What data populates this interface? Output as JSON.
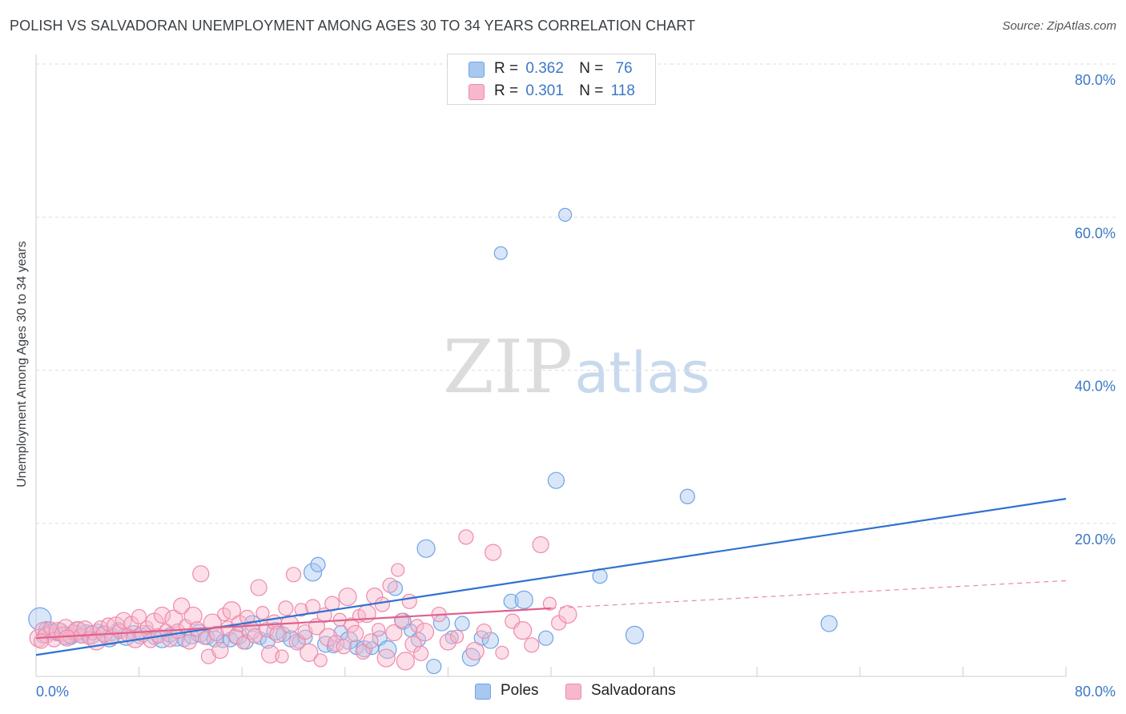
{
  "title": "POLISH VS SALVADORAN UNEMPLOYMENT AMONG AGES 30 TO 34 YEARS CORRELATION CHART",
  "source": "Source: ZipAtlas.com",
  "watermark": {
    "zip": "ZIP",
    "atlas": "atlas"
  },
  "legend": {
    "r_label": "R =",
    "n_label": "N =",
    "rows": [
      {
        "r": "0.362",
        "n": "76",
        "color": "#a8c8f0"
      },
      {
        "r": "0.301",
        "n": "118",
        "color": "#f8b8cc"
      }
    ]
  },
  "chart_data": {
    "type": "scatter",
    "title": "POLISH VS SALVADORAN UNEMPLOYMENT AMONG AGES 30 TO 34 YEARS CORRELATION CHART",
    "ylabel": "Unemployment Among Ages 30 to 34 years",
    "xlabel": "",
    "xlim": [
      0,
      80
    ],
    "ylim": [
      0,
      80
    ],
    "x_tick_labels": [
      "0.0%",
      "80.0%"
    ],
    "y_tick_labels": [
      "20.0%",
      "40.0%",
      "60.0%",
      "80.0%"
    ],
    "y_ticks": [
      20,
      40,
      60,
      80
    ],
    "grid": true,
    "legend_position": "top-center",
    "series": [
      {
        "name": "Poles",
        "color": "#6fa3e6",
        "fill": "#a8c8f0",
        "r": 0.362,
        "n": 76,
        "trend": {
          "x": [
            0,
            80
          ],
          "y": [
            2.8,
            23.2
          ],
          "style": "solid"
        },
        "points": [
          [
            0.3,
            7.5
          ],
          [
            0.8,
            6.2
          ],
          [
            1.2,
            5.8
          ],
          [
            1.6,
            5.5
          ],
          [
            1.9,
            6.0
          ],
          [
            2.3,
            5.3
          ],
          [
            2.7,
            5.1
          ],
          [
            3.1,
            5.6
          ],
          [
            3.5,
            5.2
          ],
          [
            3.9,
            5.8
          ],
          [
            4.3,
            5.4
          ],
          [
            4.8,
            5.9
          ],
          [
            5.3,
            5.6
          ],
          [
            5.9,
            5.5
          ],
          [
            6.4,
            6.1
          ],
          [
            7.0,
            5.2
          ],
          [
            7.6,
            5.7
          ],
          [
            8.1,
            5.3
          ],
          [
            8.7,
            5.8
          ],
          [
            9.2,
            5.1
          ],
          [
            9.8,
            4.9
          ],
          [
            10.4,
            5.4
          ],
          [
            10.9,
            5.0
          ],
          [
            11.5,
            4.7
          ],
          [
            12.1,
            5.2
          ],
          [
            12.7,
            5.6
          ],
          [
            13.3,
            5.1
          ],
          [
            13.9,
            4.9
          ],
          [
            14.5,
            4.6
          ],
          [
            15.1,
            4.8
          ],
          [
            15.7,
            5.3
          ],
          [
            16.3,
            4.5
          ],
          [
            16.8,
            6.9
          ],
          [
            17.4,
            5.0
          ],
          [
            18.0,
            4.6
          ],
          [
            18.6,
            5.9
          ],
          [
            19.2,
            5.5
          ],
          [
            19.8,
            4.9
          ],
          [
            20.4,
            4.5
          ],
          [
            20.9,
            5.1
          ],
          [
            21.5,
            13.6
          ],
          [
            21.9,
            14.6
          ],
          [
            22.5,
            4.2
          ],
          [
            23.1,
            3.9
          ],
          [
            23.7,
            5.7
          ],
          [
            24.3,
            4.7
          ],
          [
            24.9,
            3.8
          ],
          [
            25.5,
            3.6
          ],
          [
            26.1,
            3.7
          ],
          [
            26.7,
            5.0
          ],
          [
            27.3,
            3.5
          ],
          [
            27.9,
            11.5
          ],
          [
            28.5,
            7.2
          ],
          [
            29.1,
            6.0
          ],
          [
            29.7,
            4.8
          ],
          [
            30.3,
            16.7
          ],
          [
            30.9,
            1.3
          ],
          [
            31.5,
            7.0
          ],
          [
            32.3,
            5.1
          ],
          [
            33.1,
            6.9
          ],
          [
            33.8,
            2.5
          ],
          [
            34.6,
            5.0
          ],
          [
            35.3,
            4.7
          ],
          [
            36.1,
            55.3
          ],
          [
            36.9,
            9.8
          ],
          [
            37.9,
            10.0
          ],
          [
            39.6,
            5.0
          ],
          [
            40.4,
            25.6
          ],
          [
            41.1,
            60.3
          ],
          [
            43.8,
            13.1
          ],
          [
            46.5,
            5.4
          ],
          [
            50.6,
            23.5
          ],
          [
            61.6,
            6.9
          ],
          [
            0.5,
            5.2
          ],
          [
            3.3,
            6.2
          ],
          [
            5.7,
            5.0
          ]
        ]
      },
      {
        "name": "Salvadorans",
        "color": "#ee8aaa",
        "fill": "#f8b8cc",
        "r": 0.301,
        "n": 118,
        "trend": {
          "x": [
            0,
            40
          ],
          "y": [
            5.0,
            8.9
          ],
          "style": "solid"
        },
        "trend_extension": {
          "x": [
            40,
            80
          ],
          "y": [
            8.9,
            12.5
          ],
          "style": "dashed"
        },
        "points": [
          [
            0.2,
            5.0
          ],
          [
            0.5,
            6.1
          ],
          [
            0.8,
            5.4
          ],
          [
            1.1,
            6.3
          ],
          [
            1.4,
            4.8
          ],
          [
            1.7,
            5.9
          ],
          [
            2.0,
            5.5
          ],
          [
            2.3,
            6.4
          ],
          [
            2.6,
            5.2
          ],
          [
            2.9,
            5.8
          ],
          [
            3.2,
            6.0
          ],
          [
            3.5,
            5.3
          ],
          [
            3.8,
            6.2
          ],
          [
            4.1,
            5.0
          ],
          [
            4.4,
            5.7
          ],
          [
            4.7,
            4.6
          ],
          [
            5.0,
            6.3
          ],
          [
            5.3,
            5.5
          ],
          [
            5.6,
            6.8
          ],
          [
            5.9,
            5.1
          ],
          [
            6.2,
            6.6
          ],
          [
            6.5,
            5.9
          ],
          [
            6.8,
            7.3
          ],
          [
            7.1,
            5.4
          ],
          [
            7.4,
            6.9
          ],
          [
            7.7,
            4.9
          ],
          [
            8.0,
            7.8
          ],
          [
            8.3,
            5.6
          ],
          [
            8.6,
            6.4
          ],
          [
            8.9,
            4.7
          ],
          [
            9.2,
            7.1
          ],
          [
            9.5,
            5.3
          ],
          [
            9.8,
            8.0
          ],
          [
            10.1,
            6.0
          ],
          [
            10.4,
            4.8
          ],
          [
            10.7,
            7.5
          ],
          [
            11.0,
            5.9
          ],
          [
            11.3,
            9.2
          ],
          [
            11.6,
            6.6
          ],
          [
            11.9,
            4.5
          ],
          [
            12.2,
            7.9
          ],
          [
            12.5,
            6.2
          ],
          [
            12.8,
            13.4
          ],
          [
            13.1,
            5.0
          ],
          [
            13.4,
            2.6
          ],
          [
            13.7,
            7.0
          ],
          [
            14.0,
            5.6
          ],
          [
            14.3,
            3.4
          ],
          [
            14.6,
            8.1
          ],
          [
            14.9,
            6.3
          ],
          [
            15.2,
            8.6
          ],
          [
            15.5,
            5.2
          ],
          [
            15.8,
            6.9
          ],
          [
            16.1,
            4.4
          ],
          [
            16.4,
            7.7
          ],
          [
            16.7,
            6.0
          ],
          [
            17.0,
            5.3
          ],
          [
            17.3,
            11.6
          ],
          [
            17.6,
            8.3
          ],
          [
            17.9,
            6.1
          ],
          [
            18.2,
            2.9
          ],
          [
            18.5,
            7.1
          ],
          [
            18.8,
            5.5
          ],
          [
            19.1,
            2.6
          ],
          [
            19.4,
            8.9
          ],
          [
            19.7,
            6.8
          ],
          [
            20.0,
            13.3
          ],
          [
            20.3,
            4.5
          ],
          [
            20.6,
            8.7
          ],
          [
            20.9,
            5.8
          ],
          [
            21.2,
            3.1
          ],
          [
            21.5,
            9.1
          ],
          [
            21.8,
            6.5
          ],
          [
            22.1,
            2.1
          ],
          [
            22.4,
            8.0
          ],
          [
            22.7,
            5.1
          ],
          [
            23.0,
            9.5
          ],
          [
            23.3,
            4.3
          ],
          [
            23.6,
            7.4
          ],
          [
            23.9,
            3.9
          ],
          [
            24.2,
            10.4
          ],
          [
            24.5,
            6.7
          ],
          [
            24.8,
            5.6
          ],
          [
            25.1,
            7.9
          ],
          [
            25.4,
            3.2
          ],
          [
            25.7,
            8.2
          ],
          [
            26.0,
            4.6
          ],
          [
            26.3,
            10.5
          ],
          [
            26.6,
            6.1
          ],
          [
            26.9,
            9.4
          ],
          [
            27.2,
            2.4
          ],
          [
            27.5,
            11.9
          ],
          [
            27.8,
            5.7
          ],
          [
            28.1,
            13.9
          ],
          [
            28.4,
            7.3
          ],
          [
            28.7,
            2.0
          ],
          [
            29.0,
            9.8
          ],
          [
            29.3,
            4.2
          ],
          [
            29.6,
            6.6
          ],
          [
            29.9,
            3.0
          ],
          [
            30.2,
            5.8
          ],
          [
            31.3,
            8.1
          ],
          [
            32.0,
            4.5
          ],
          [
            32.7,
            5.2
          ],
          [
            33.4,
            18.2
          ],
          [
            34.1,
            3.3
          ],
          [
            34.8,
            5.9
          ],
          [
            35.5,
            16.2
          ],
          [
            36.2,
            3.1
          ],
          [
            37.0,
            7.2
          ],
          [
            37.8,
            6.0
          ],
          [
            38.5,
            4.1
          ],
          [
            39.2,
            17.2
          ],
          [
            39.9,
            9.5
          ],
          [
            40.6,
            7.0
          ],
          [
            41.3,
            8.1
          ],
          [
            0.4,
            4.6
          ],
          [
            2.4,
            5.0
          ]
        ]
      }
    ]
  }
}
